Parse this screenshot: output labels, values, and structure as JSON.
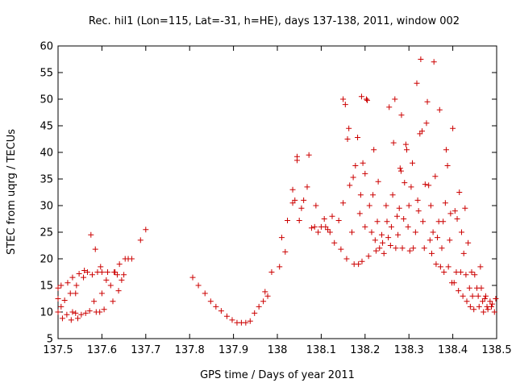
{
  "chart_data": {
    "type": "scatter",
    "title": "Rec. hil1 (Lon=115, Lat=-31, h=HE), days 137-138, 2011, window 002",
    "xlabel": "GPS time / Days of year 2011",
    "ylabel": "STEC from uqrg / TECUs",
    "xlim": [
      137.5,
      138.5
    ],
    "ylim": [
      5,
      60
    ],
    "xticks": [
      "137.5",
      "137.6",
      "137.7",
      "137.8",
      "137.9",
      "138",
      "138.1",
      "138.2",
      "138.3",
      "138.4",
      "138.5"
    ],
    "yticks": [
      "5",
      "10",
      "15",
      "20",
      "25",
      "30",
      "35",
      "40",
      "45",
      "50",
      "55",
      "60"
    ],
    "grid": false,
    "legend": "none",
    "marker": "plus",
    "color": "#cc0000",
    "series": [
      {
        "points": [
          [
            137.5,
            10.0
          ],
          [
            137.5,
            12.5
          ],
          [
            137.5,
            14.5
          ],
          [
            137.507,
            11.0
          ],
          [
            137.507,
            15.0
          ],
          [
            137.51,
            8.8
          ],
          [
            137.515,
            12.2
          ],
          [
            137.52,
            9.5
          ],
          [
            137.522,
            15.5
          ],
          [
            137.528,
            13.5
          ],
          [
            137.53,
            8.5
          ],
          [
            137.533,
            10.0
          ],
          [
            137.533,
            16.5
          ],
          [
            137.54,
            9.8
          ],
          [
            137.54,
            13.5
          ],
          [
            137.542,
            15.0
          ],
          [
            137.545,
            8.8
          ],
          [
            137.548,
            17.2
          ],
          [
            137.553,
            9.5
          ],
          [
            137.558,
            16.5
          ],
          [
            137.56,
            17.8
          ],
          [
            137.563,
            9.8
          ],
          [
            137.567,
            17.5
          ],
          [
            137.572,
            10.2
          ],
          [
            137.575,
            24.5
          ],
          [
            137.578,
            17.0
          ],
          [
            137.582,
            12.0
          ],
          [
            137.585,
            21.8
          ],
          [
            137.587,
            10.0
          ],
          [
            137.59,
            17.5
          ],
          [
            137.595,
            10.0
          ],
          [
            137.597,
            18.5
          ],
          [
            137.6,
            13.5
          ],
          [
            137.6,
            17.5
          ],
          [
            137.605,
            10.5
          ],
          [
            137.61,
            16.0
          ],
          [
            137.613,
            17.5
          ],
          [
            137.62,
            15.0
          ],
          [
            137.625,
            12.0
          ],
          [
            137.628,
            17.5
          ],
          [
            137.63,
            17.5
          ],
          [
            137.635,
            17.0
          ],
          [
            137.638,
            14.0
          ],
          [
            137.64,
            19.0
          ],
          [
            137.645,
            16.0
          ],
          [
            137.65,
            17.0
          ],
          [
            137.653,
            20.0
          ],
          [
            137.66,
            20.0
          ],
          [
            137.668,
            20.0
          ],
          [
            137.688,
            23.5
          ],
          [
            137.7,
            25.5
          ],
          [
            137.807,
            16.5
          ],
          [
            137.82,
            15.0
          ],
          [
            137.835,
            13.5
          ],
          [
            137.848,
            12.0
          ],
          [
            137.86,
            11.0
          ],
          [
            137.872,
            10.2
          ],
          [
            137.885,
            9.2
          ],
          [
            137.897,
            8.5
          ],
          [
            137.908,
            8.0
          ],
          [
            137.918,
            8.0
          ],
          [
            137.928,
            8.0
          ],
          [
            137.938,
            8.3
          ],
          [
            137.948,
            9.8
          ],
          [
            137.958,
            11.0
          ],
          [
            137.968,
            12.0
          ],
          [
            137.972,
            13.8
          ],
          [
            137.978,
            13.0
          ],
          [
            137.987,
            17.5
          ],
          [
            138.005,
            18.5
          ],
          [
            138.01,
            24.0
          ],
          [
            138.018,
            21.3
          ],
          [
            138.023,
            27.2
          ],
          [
            138.035,
            30.5
          ],
          [
            138.035,
            33.0
          ],
          [
            138.04,
            31.0
          ],
          [
            138.045,
            38.5
          ],
          [
            138.045,
            39.2
          ],
          [
            138.05,
            27.2
          ],
          [
            138.055,
            29.5
          ],
          [
            138.06,
            31.0
          ],
          [
            138.068,
            33.5
          ],
          [
            138.072,
            39.5
          ],
          [
            138.078,
            25.8
          ],
          [
            138.085,
            26.0
          ],
          [
            138.088,
            30.0
          ],
          [
            138.093,
            25.0
          ],
          [
            138.1,
            26.0
          ],
          [
            138.107,
            27.5
          ],
          [
            138.11,
            26.0
          ],
          [
            138.115,
            25.5
          ],
          [
            138.12,
            25.0
          ],
          [
            138.125,
            28.0
          ],
          [
            138.13,
            23.0
          ],
          [
            138.14,
            27.2
          ],
          [
            138.145,
            21.8
          ],
          [
            138.15,
            30.5
          ],
          [
            138.15,
            50.0
          ],
          [
            138.155,
            49.0
          ],
          [
            138.158,
            20.0
          ],
          [
            138.16,
            42.5
          ],
          [
            138.163,
            44.5
          ],
          [
            138.165,
            33.8
          ],
          [
            138.17,
            25.0
          ],
          [
            138.173,
            35.3
          ],
          [
            138.175,
            19.0
          ],
          [
            138.178,
            37.5
          ],
          [
            138.183,
            42.8
          ],
          [
            138.185,
            19.0
          ],
          [
            138.188,
            28.5
          ],
          [
            138.19,
            32.0
          ],
          [
            138.192,
            50.5
          ],
          [
            138.193,
            19.5
          ],
          [
            138.195,
            38.0
          ],
          [
            138.2,
            36.0
          ],
          [
            138.2,
            26.0
          ],
          [
            138.203,
            50.0
          ],
          [
            138.205,
            49.8
          ],
          [
            138.208,
            20.5
          ],
          [
            138.21,
            30.0
          ],
          [
            138.215,
            25.0
          ],
          [
            138.218,
            32.0
          ],
          [
            138.22,
            40.5
          ],
          [
            138.223,
            23.5
          ],
          [
            138.225,
            21.5
          ],
          [
            138.228,
            27.0
          ],
          [
            138.23,
            34.5
          ],
          [
            138.233,
            22.0
          ],
          [
            138.238,
            24.5
          ],
          [
            138.24,
            23.0
          ],
          [
            138.243,
            21.0
          ],
          [
            138.248,
            30.0
          ],
          [
            138.25,
            27.0
          ],
          [
            138.253,
            24.0
          ],
          [
            138.255,
            48.5
          ],
          [
            138.258,
            22.5
          ],
          [
            138.26,
            26.0
          ],
          [
            138.263,
            32.0
          ],
          [
            138.265,
            41.8
          ],
          [
            138.268,
            50.0
          ],
          [
            138.27,
            22.0
          ],
          [
            138.273,
            28.0
          ],
          [
            138.275,
            24.5
          ],
          [
            138.278,
            29.5
          ],
          [
            138.28,
            37.0
          ],
          [
            138.282,
            36.5
          ],
          [
            138.283,
            47.0
          ],
          [
            138.285,
            22.0
          ],
          [
            138.288,
            27.5
          ],
          [
            138.29,
            34.3
          ],
          [
            138.293,
            41.5
          ],
          [
            138.295,
            40.5
          ],
          [
            138.298,
            26.0
          ],
          [
            138.3,
            30.0
          ],
          [
            138.302,
            21.5
          ],
          [
            138.305,
            33.5
          ],
          [
            138.308,
            38.0
          ],
          [
            138.31,
            22.0
          ],
          [
            138.315,
            25.0
          ],
          [
            138.318,
            53.0
          ],
          [
            138.32,
            31.0
          ],
          [
            138.322,
            29.0
          ],
          [
            138.325,
            43.5
          ],
          [
            138.327,
            57.5
          ],
          [
            138.33,
            44.0
          ],
          [
            138.332,
            27.0
          ],
          [
            138.335,
            22.0
          ],
          [
            138.337,
            34.0
          ],
          [
            138.34,
            45.5
          ],
          [
            138.342,
            49.5
          ],
          [
            138.345,
            33.8
          ],
          [
            138.348,
            23.5
          ],
          [
            138.35,
            30.0
          ],
          [
            138.352,
            21.0
          ],
          [
            138.355,
            25.0
          ],
          [
            138.357,
            57.0
          ],
          [
            138.36,
            35.5
          ],
          [
            138.362,
            19.0
          ],
          [
            138.365,
            24.0
          ],
          [
            138.368,
            27.0
          ],
          [
            138.37,
            48.0
          ],
          [
            138.372,
            18.5
          ],
          [
            138.375,
            22.0
          ],
          [
            138.378,
            27.0
          ],
          [
            138.38,
            17.5
          ],
          [
            138.383,
            30.5
          ],
          [
            138.385,
            40.5
          ],
          [
            138.388,
            37.5
          ],
          [
            138.39,
            18.5
          ],
          [
            138.393,
            23.5
          ],
          [
            138.395,
            28.5
          ],
          [
            138.398,
            15.5
          ],
          [
            138.4,
            44.5
          ],
          [
            138.403,
            15.5
          ],
          [
            138.405,
            29.0
          ],
          [
            138.408,
            17.5
          ],
          [
            138.41,
            27.5
          ],
          [
            138.413,
            14.0
          ],
          [
            138.415,
            32.5
          ],
          [
            138.418,
            17.5
          ],
          [
            138.42,
            25.0
          ],
          [
            138.423,
            13.0
          ],
          [
            138.425,
            21.0
          ],
          [
            138.428,
            29.5
          ],
          [
            138.43,
            17.0
          ],
          [
            138.432,
            12.0
          ],
          [
            138.435,
            23.0
          ],
          [
            138.438,
            14.5
          ],
          [
            138.44,
            11.0
          ],
          [
            138.443,
            17.5
          ],
          [
            138.445,
            13.0
          ],
          [
            138.448,
            10.5
          ],
          [
            138.45,
            17.0
          ],
          [
            138.455,
            14.5
          ],
          [
            138.458,
            13.0
          ],
          [
            138.46,
            11.0
          ],
          [
            138.463,
            18.5
          ],
          [
            138.465,
            14.5
          ],
          [
            138.468,
            12.0
          ],
          [
            138.47,
            10.0
          ],
          [
            138.473,
            12.5
          ],
          [
            138.475,
            13.0
          ],
          [
            138.478,
            11.0
          ],
          [
            138.48,
            10.5
          ],
          [
            138.485,
            12.0
          ],
          [
            138.488,
            11.0
          ],
          [
            138.49,
            11.5
          ],
          [
            138.495,
            10.0
          ],
          [
            138.498,
            12.5
          ]
        ]
      }
    ]
  }
}
